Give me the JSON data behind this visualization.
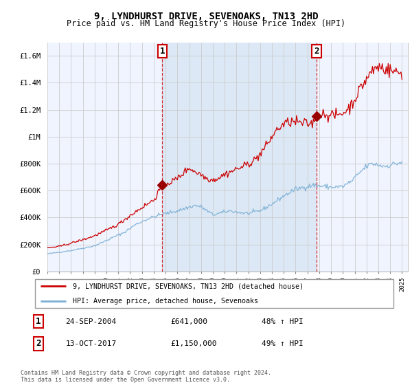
{
  "title": "9, LYNDHURST DRIVE, SEVENOAKS, TN13 2HD",
  "subtitle": "Price paid vs. HM Land Registry's House Price Index (HPI)",
  "ylabel_ticks": [
    "£0",
    "£200K",
    "£400K",
    "£600K",
    "£800K",
    "£1M",
    "£1.2M",
    "£1.4M",
    "£1.6M"
  ],
  "ytick_values": [
    0,
    200000,
    400000,
    600000,
    800000,
    1000000,
    1200000,
    1400000,
    1600000
  ],
  "ylim": [
    0,
    1700000
  ],
  "xlim_start": 1995.0,
  "xlim_end": 2025.5,
  "marker1_x": 2004.73,
  "marker1_y": 641000,
  "marker1_label": "1",
  "marker1_date": "24-SEP-2004",
  "marker1_price": "£641,000",
  "marker1_hpi": "48% ↑ HPI",
  "marker2_x": 2017.78,
  "marker2_y": 1150000,
  "marker2_label": "2",
  "marker2_date": "13-OCT-2017",
  "marker2_price": "£1,150,000",
  "marker2_hpi": "49% ↑ HPI",
  "line1_color": "#cc0000",
  "line2_color": "#7aafd4",
  "plot_bg": "#f0f4ff",
  "highlight_bg": "#dce8f5",
  "grid_color": "#cccccc",
  "legend1_label": "9, LYNDHURST DRIVE, SEVENOAKS, TN13 2HD (detached house)",
  "legend2_label": "HPI: Average price, detached house, Sevenoaks",
  "footer": "Contains HM Land Registry data © Crown copyright and database right 2024.\nThis data is licensed under the Open Government Licence v3.0."
}
